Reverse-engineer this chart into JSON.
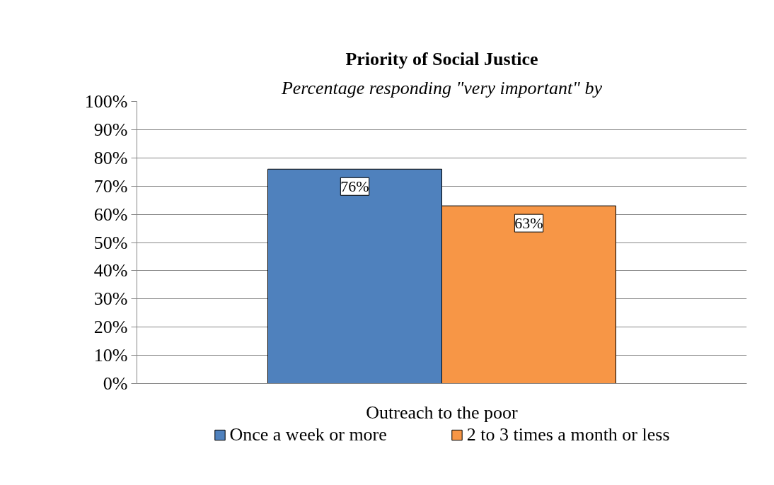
{
  "chart_data": {
    "type": "bar",
    "title": "Priority of Social Justice",
    "subtitle": "Percentage responding \"very important\" by",
    "categories": [
      "Outreach to the poor"
    ],
    "series": [
      {
        "name": "Once a week or more",
        "color": "#4f81bd",
        "values": [
          76
        ],
        "value_labels": [
          "76%"
        ]
      },
      {
        "name": "2 to 3 times a month or less",
        "color": "#f79646",
        "values": [
          63
        ],
        "value_labels": [
          "63%"
        ]
      }
    ],
    "ylim": [
      0,
      100
    ],
    "yticks": [
      {
        "value": 0,
        "label": "0%"
      },
      {
        "value": 10,
        "label": "10%"
      },
      {
        "value": 20,
        "label": "20%"
      },
      {
        "value": 30,
        "label": "30%"
      },
      {
        "value": 40,
        "label": "40%"
      },
      {
        "value": 50,
        "label": "50%"
      },
      {
        "value": 60,
        "label": "60%"
      },
      {
        "value": 70,
        "label": "70%"
      },
      {
        "value": 80,
        "label": "80%"
      },
      {
        "value": 90,
        "label": "90%"
      },
      {
        "value": 100,
        "label": "100%"
      }
    ],
    "grid": "y",
    "legend": "bottom"
  }
}
